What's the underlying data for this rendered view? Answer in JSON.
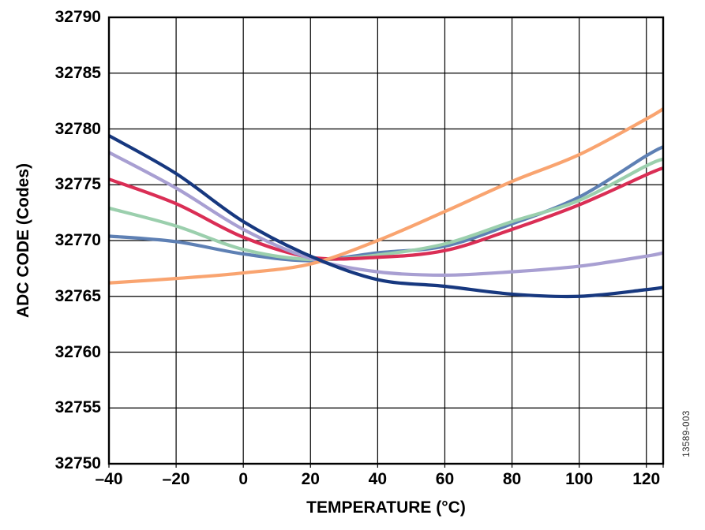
{
  "figure": {
    "watermark": "13589-003"
  },
  "chart_data": {
    "type": "line",
    "title": "",
    "xlabel": "TEMPERATURE (°C)",
    "ylabel": "ADC CODE (Codes)",
    "xlim": [
      -40,
      125
    ],
    "ylim": [
      32750,
      32790
    ],
    "x_ticks": [
      -40,
      -20,
      0,
      20,
      40,
      60,
      80,
      100,
      120
    ],
    "x_tick_labels": [
      "–40",
      "–20",
      "0",
      "20",
      "40",
      "60",
      "80",
      "100",
      "120"
    ],
    "y_ticks": [
      32750,
      32755,
      32760,
      32765,
      32770,
      32775,
      32780,
      32785,
      32790
    ],
    "y_tick_labels": [
      "32750",
      "32755",
      "32760",
      "32765",
      "32770",
      "32775",
      "32780",
      "32785",
      "32790"
    ],
    "grid": true,
    "legend_position": "none",
    "axis_color": "#000000",
    "x": [
      -40,
      -20,
      0,
      20,
      40,
      60,
      80,
      100,
      120,
      125
    ],
    "series": [
      {
        "name": "steel-blue",
        "color": "#5e80b4",
        "values": [
          32770.4,
          32769.9,
          32768.8,
          32768.2,
          32768.9,
          32769.5,
          32771.5,
          32773.9,
          32777.6,
          32778.4
        ]
      },
      {
        "name": "green",
        "color": "#9bcfad",
        "values": [
          32772.9,
          32771.3,
          32769.2,
          32768.3,
          32768.7,
          32769.7,
          32771.7,
          32773.6,
          32776.7,
          32777.3
        ]
      },
      {
        "name": "red",
        "color": "#da2e55",
        "values": [
          32775.5,
          32773.3,
          32770.3,
          32768.5,
          32768.5,
          32769.1,
          32771.0,
          32773.2,
          32775.9,
          32776.5
        ]
      },
      {
        "name": "lavender",
        "color": "#a89fd2",
        "values": [
          32777.9,
          32774.7,
          32771.0,
          32768.4,
          32767.2,
          32766.9,
          32767.2,
          32767.7,
          32768.6,
          32768.9
        ]
      },
      {
        "name": "orange",
        "color": "#f9a470",
        "values": [
          32766.2,
          32766.6,
          32767.1,
          32767.9,
          32770.0,
          32772.6,
          32775.3,
          32777.7,
          32780.9,
          32781.8
        ]
      },
      {
        "name": "navy",
        "color": "#17387f",
        "values": [
          32779.4,
          32776.0,
          32771.7,
          32768.6,
          32766.5,
          32765.9,
          32765.2,
          32765.0,
          32765.6,
          32765.8
        ]
      }
    ]
  }
}
